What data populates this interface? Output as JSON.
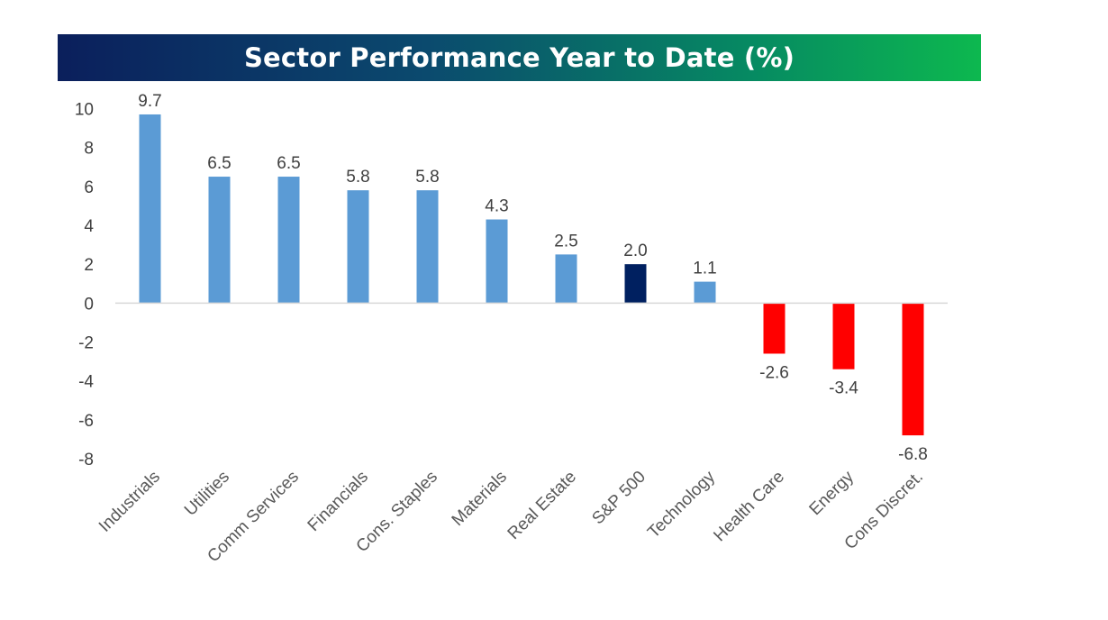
{
  "chart_data": {
    "type": "bar",
    "title": "Sector Performance Year to Date (%)",
    "categories": [
      "Industrials",
      "Utilities",
      "Comm Services",
      "Financials",
      "Cons. Staples",
      "Materials",
      "Real Estate",
      "S&P 500",
      "Technology",
      "Health Care",
      "Energy",
      "Cons Discret."
    ],
    "values": [
      9.7,
      6.5,
      6.5,
      5.8,
      5.8,
      4.3,
      2.5,
      2.0,
      1.1,
      -2.6,
      -3.4,
      -6.8
    ],
    "value_labels": [
      "9.7",
      "6.5",
      "6.5",
      "5.8",
      "5.8",
      "4.3",
      "2.5",
      "2.0",
      "1.1",
      "-2.6",
      "-3.4",
      "-6.8"
    ],
    "ylim": [
      -8,
      10
    ],
    "yticks": [
      "10",
      "8",
      "6",
      "4",
      "2",
      "0",
      "-2",
      "-4",
      "-6",
      "-8"
    ],
    "grid": false,
    "legend": "none",
    "colors": {
      "positive": "#5b9bd5",
      "negative": "#ff0000",
      "benchmark": "#002060",
      "benchmark_category": "S&P 500"
    }
  }
}
